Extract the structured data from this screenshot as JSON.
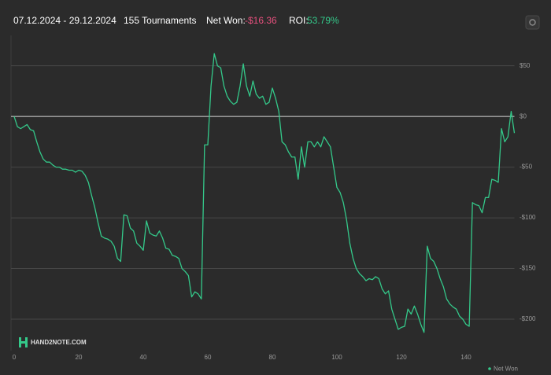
{
  "header": {
    "date_range": "07.12.2024 - 29.12.2024",
    "tournaments": "155 Tournaments",
    "net_won_label": "Net Won:",
    "net_won_value": "-$16.36",
    "roi_label": "ROI:",
    "roi_value": "53.79%"
  },
  "chart_data": {
    "type": "line",
    "watermark": "HAND2NOTE.COM",
    "x": [
      0,
      1,
      2,
      3,
      4,
      5,
      6,
      7,
      8,
      9,
      10,
      11,
      12,
      13,
      14,
      15,
      16,
      17,
      18,
      19,
      20,
      21,
      22,
      23,
      24,
      25,
      26,
      27,
      28,
      29,
      30,
      31,
      32,
      33,
      34,
      35,
      36,
      37,
      38,
      39,
      40,
      41,
      42,
      43,
      44,
      45,
      46,
      47,
      48,
      49,
      50,
      51,
      52,
      53,
      54,
      55,
      56,
      57,
      58,
      59,
      60,
      61,
      62,
      63,
      64,
      65,
      66,
      67,
      68,
      69,
      70,
      71,
      72,
      73,
      74,
      75,
      76,
      77,
      78,
      79,
      80,
      81,
      82,
      83,
      84,
      85,
      86,
      87,
      88,
      89,
      90,
      91,
      92,
      93,
      94,
      95,
      96,
      97,
      98,
      99,
      100,
      101,
      102,
      103,
      104,
      105,
      106,
      107,
      108,
      109,
      110,
      111,
      112,
      113,
      114,
      115,
      116,
      117,
      118,
      119,
      120,
      121,
      122,
      123,
      124,
      125,
      126,
      127,
      128,
      129,
      130,
      131,
      132,
      133,
      134,
      135,
      136,
      137,
      138,
      139,
      140,
      141,
      142,
      143,
      144,
      145,
      146,
      147,
      148,
      149,
      150,
      151,
      152,
      153,
      154,
      155
    ],
    "series": [
      {
        "name": "Net Won",
        "color": "#34c98a",
        "values": [
          0,
          -10,
          -12,
          -10,
          -8,
          -13,
          -14,
          -25,
          -35,
          -42,
          -45,
          -45,
          -48,
          -50,
          -50,
          -52,
          -52,
          -53,
          -53,
          -55,
          -53,
          -54,
          -58,
          -65,
          -78,
          -90,
          -105,
          -118,
          -120,
          -121,
          -123,
          -128,
          -140,
          -143,
          -97,
          -98,
          -110,
          -113,
          -125,
          -128,
          -132,
          -103,
          -115,
          -117,
          -118,
          -113,
          -120,
          -130,
          -131,
          -137,
          -138,
          -140,
          -150,
          -153,
          -157,
          -178,
          -173,
          -175,
          -180,
          -28,
          -28,
          30,
          62,
          50,
          48,
          30,
          20,
          15,
          12,
          14,
          30,
          52,
          30,
          20,
          35,
          22,
          18,
          20,
          12,
          14,
          28,
          18,
          5,
          -25,
          -28,
          -35,
          -40,
          -40,
          -62,
          -30,
          -50,
          -25,
          -25,
          -30,
          -25,
          -30,
          -20,
          -25,
          -30,
          -50,
          -70,
          -75,
          -85,
          -102,
          -125,
          -140,
          -150,
          -155,
          -158,
          -162,
          -160,
          -161,
          -158,
          -160,
          -170,
          -175,
          -172,
          -190,
          -200,
          -210,
          -208,
          -207,
          -190,
          -195,
          -187,
          -195,
          -205,
          -213,
          -128,
          -140,
          -143,
          -150,
          -160,
          -168,
          -180,
          -185,
          -188,
          -190,
          -197,
          -200,
          -205,
          -207,
          -85,
          -87,
          -88,
          -95,
          -80,
          -80,
          -62,
          -63,
          -65,
          -12,
          -25,
          -20,
          5,
          -16.36
        ]
      }
    ],
    "xlim": [
      0,
      155
    ],
    "xticks": [
      0,
      20,
      40,
      60,
      80,
      100,
      120,
      140
    ],
    "ylim": [
      -231,
      80
    ],
    "yticks": [
      {
        "value": 50,
        "label": "$50"
      },
      {
        "value": 0,
        "label": "$0"
      },
      {
        "value": -50,
        "label": "-$50"
      },
      {
        "value": -100,
        "label": "-$100"
      },
      {
        "value": -150,
        "label": "-$150"
      },
      {
        "value": -200,
        "label": "-$200"
      }
    ],
    "grid": true
  }
}
